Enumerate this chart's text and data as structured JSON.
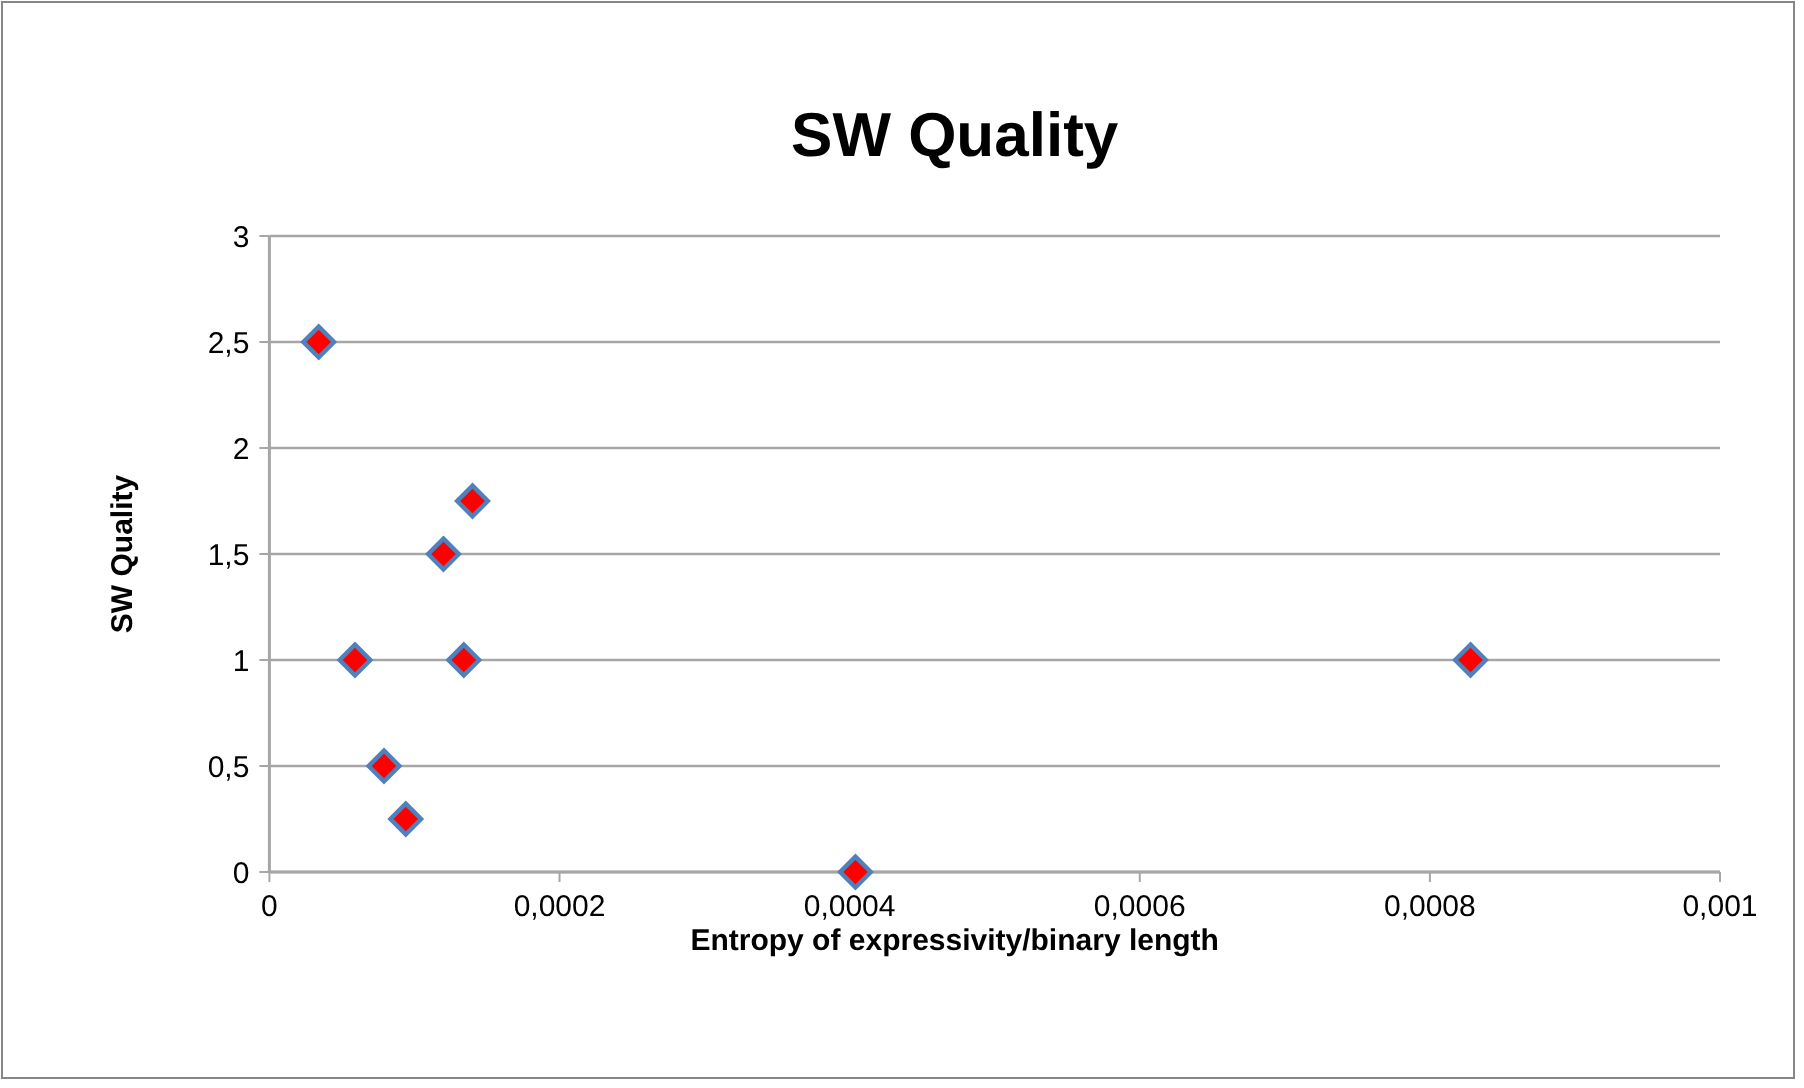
{
  "chart_data": {
    "type": "scatter",
    "title": "SW Quality",
    "xlabel": "Entropy of expressivity/binary length",
    "ylabel": "SW Quality",
    "x": [
      3.4e-05,
      5.9e-05,
      7.9e-05,
      9.4e-05,
      0.00012,
      0.000134,
      0.00014,
      0.000404,
      0.000828
    ],
    "series": [
      {
        "color": "#ff0000",
        "values": [
          2.5,
          1,
          0.5,
          0.25,
          1.5,
          1,
          1.75,
          0,
          1
        ]
      }
    ],
    "xlim": [
      0,
      0.001
    ],
    "xticks": [
      0,
      {
        "value": 0.0002,
        "label": "0,0002"
      },
      {
        "value": 0.0004,
        "label": "0,0004"
      },
      {
        "value": 0.0006,
        "label": "0,0006"
      },
      {
        "value": 0.0008,
        "label": "0,0008"
      },
      {
        "value": 0.001,
        "label": "0,001"
      }
    ],
    "ylim": [
      0,
      3
    ],
    "yticks": [
      0,
      {
        "value": 0.5,
        "label": "0,5"
      },
      1,
      {
        "value": 1.5,
        "label": "1,5"
      },
      2,
      {
        "value": 2.5,
        "label": "2,5"
      },
      3
    ],
    "grid": "y",
    "marker": "diamond"
  }
}
